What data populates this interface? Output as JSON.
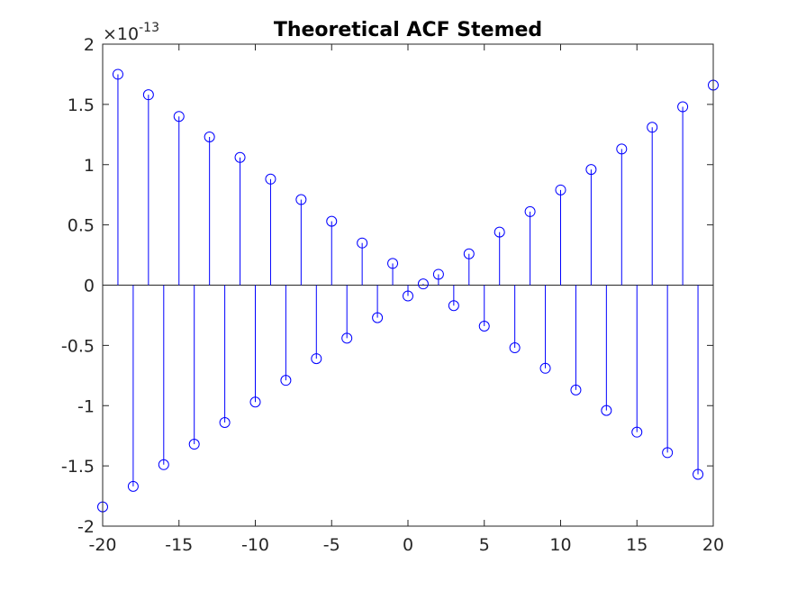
{
  "chart_data": {
    "type": "stem",
    "title": "Theoretical ACF Stemed",
    "xlabel": "",
    "ylabel": "",
    "xlim": [
      -20,
      20
    ],
    "ylim": [
      -2,
      2
    ],
    "y_exponent_label": {
      "base": "×10",
      "exponent": "-13"
    },
    "x_ticks": [
      -20,
      -15,
      -10,
      -5,
      0,
      5,
      10,
      15,
      20
    ],
    "x_tick_labels": [
      "-20",
      "-15",
      "-10",
      "-5",
      "0",
      "5",
      "10",
      "15",
      "20"
    ],
    "y_ticks": [
      -2,
      -1.5,
      -1,
      -0.5,
      0,
      0.5,
      1,
      1.5,
      2
    ],
    "y_tick_labels": [
      "-2",
      "-1.5",
      "-1",
      "-0.5",
      "0",
      "0.5",
      "1",
      "1.5",
      "2"
    ],
    "grid": false,
    "series_color": "#0000ff",
    "x": [
      -20,
      -19,
      -18,
      -17,
      -16,
      -15,
      -14,
      -13,
      -12,
      -11,
      -10,
      -9,
      -8,
      -7,
      -6,
      -5,
      -4,
      -3,
      -2,
      -1,
      0,
      1,
      2,
      3,
      4,
      5,
      6,
      7,
      8,
      9,
      10,
      11,
      12,
      13,
      14,
      15,
      16,
      17,
      18,
      19,
      20
    ],
    "values": [
      -1.84,
      1.75,
      -1.67,
      1.58,
      -1.49,
      1.4,
      -1.32,
      1.23,
      -1.14,
      1.06,
      -0.97,
      0.88,
      -0.79,
      0.71,
      -0.61,
      0.53,
      -0.44,
      0.35,
      -0.27,
      0.18,
      -0.09,
      0.01,
      0.09,
      -0.17,
      0.26,
      -0.34,
      0.44,
      -0.52,
      0.61,
      -0.69,
      0.79,
      -0.87,
      0.96,
      -1.04,
      1.13,
      -1.22,
      1.31,
      -1.39,
      1.48,
      -1.57,
      1.66
    ]
  }
}
